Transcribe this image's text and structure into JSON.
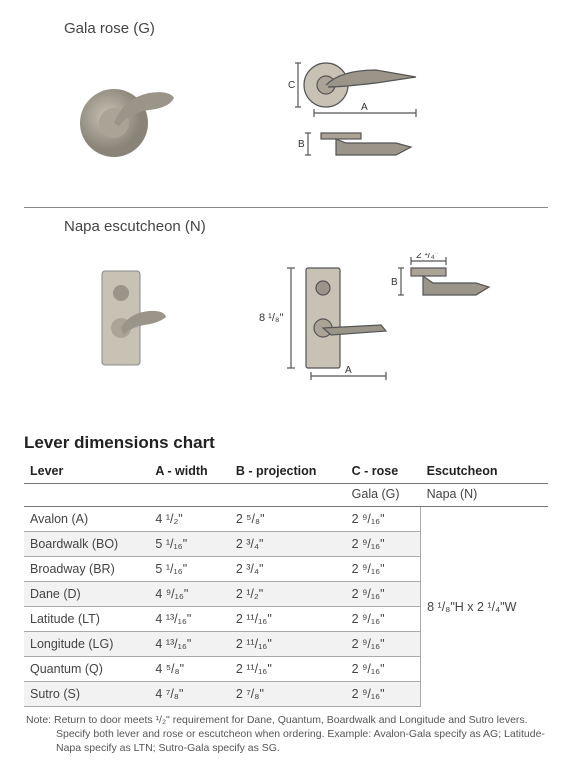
{
  "products": {
    "gala": {
      "title": "Gala rose (G)"
    },
    "napa": {
      "title": "Napa escutcheon (N)",
      "height_label": "8 ¹/₈\"",
      "width_label": "2 ¹/₄\""
    }
  },
  "chart": {
    "title": "Lever dimensions chart",
    "columns": {
      "lever": "Lever",
      "a": "A - width",
      "b": "B - projection",
      "c": "C - rose",
      "esc": "Escutcheon"
    },
    "subheaders": {
      "c": "Gala (G)",
      "esc": "Napa (N)"
    },
    "rows": [
      {
        "lever": "Avalon (A)",
        "a": "4 ¹/₂\"",
        "b": "2 ⁵/₈\"",
        "c": "2 ⁹/₁₆\""
      },
      {
        "lever": "Boardwalk (BO)",
        "a": "5 ¹/₁₆\"",
        "b": "2 ³/₄\"",
        "c": "2 ⁹/₁₆\""
      },
      {
        "lever": "Broadway (BR)",
        "a": "5 ¹/₁₆\"",
        "b": "2 ³/₄\"",
        "c": "2 ⁹/₁₆\""
      },
      {
        "lever": "Dane (D)",
        "a": "4 ⁹/₁₆\"",
        "b": "2 ¹/₂\"",
        "c": "2 ⁹/₁₆\""
      },
      {
        "lever": "Latitude (LT)",
        "a": "4 ¹³/₁₆\"",
        "b": "2 ¹¹/₁₆\"",
        "c": "2 ⁹/₁₆\""
      },
      {
        "lever": "Longitude (LG)",
        "a": "4 ¹³/₁₆\"",
        "b": "2 ¹¹/₁₆\"",
        "c": "2 ⁹/₁₆\""
      },
      {
        "lever": "Quantum (Q)",
        "a": "4 ⁵/₈\"",
        "b": "2 ¹¹/₁₆\"",
        "c": "2 ⁹/₁₆\""
      },
      {
        "lever": "Sutro (S)",
        "a": "4 ⁷/₈\"",
        "b": "2 ⁷/₈\"",
        "c": "2 ⁹/₁₆\""
      }
    ],
    "escutcheon_merged": "8 ¹/₈\"H x 2 ¹/₄\"W"
  },
  "note": {
    "line1": "Note: Return to door meets ¹/₂\" requirement for Dane, Quantum, Boardwalk and Longitude and Sutro levers.",
    "line2": "Specify both lever and rose or escutcheon when ordering. Example: Avalon-Gala specify as AG; Latitude-Napa specify as LTN; Sutro-Gala specify as SG."
  },
  "colors": {
    "metal": "#9a9489",
    "metal_light": "#b8b2a6",
    "line": "#555555"
  }
}
